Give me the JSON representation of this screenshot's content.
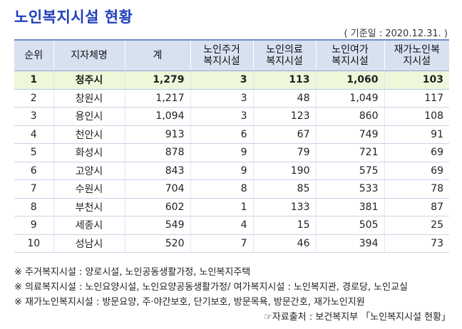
{
  "title": "노인복지시설 현황",
  "basis_date": "( 기준일 : 2020.12.31. )",
  "table": {
    "headers": [
      "순위",
      "지자체명",
      "계",
      "노인주거\n복지시설",
      "노인의료\n복지시설",
      "노인여가\n복지시설",
      "재가노인복\n지시설"
    ],
    "rows": [
      [
        "1",
        "청주시",
        "1,279",
        "3",
        "113",
        "1,060",
        "103"
      ],
      [
        "2",
        "창원시",
        "1,217",
        "3",
        "48",
        "1,049",
        "117"
      ],
      [
        "3",
        "용인시",
        "1,094",
        "3",
        "123",
        "860",
        "108"
      ],
      [
        "4",
        "천안시",
        "913",
        "6",
        "67",
        "749",
        "91"
      ],
      [
        "5",
        "화성시",
        "878",
        "9",
        "79",
        "721",
        "69"
      ],
      [
        "6",
        "고양시",
        "843",
        "9",
        "190",
        "575",
        "69"
      ],
      [
        "7",
        "수원시",
        "704",
        "8",
        "85",
        "533",
        "78"
      ],
      [
        "8",
        "부천시",
        "602",
        "1",
        "133",
        "381",
        "87"
      ],
      [
        "9",
        "세종시",
        "549",
        "4",
        "15",
        "505",
        "25"
      ],
      [
        "10",
        "성남시",
        "520",
        "7",
        "46",
        "394",
        "73"
      ]
    ]
  },
  "notes": [
    "※ 주거복지시설 : 양로시설, 노인공동생활가정, 노인복지주택",
    "※ 의료복지시설 : 노인요양시설, 노인요양공동생활가정/ 여가복지시설 : 노인복지관, 경로당, 노인교실",
    "※ 재가노인복지시설 : 방문요양, 주·야간보호, 단기보호, 방문목욕, 방문간호, 재가노인지원"
  ],
  "source": "☞자료출처 : 보건복지부 「노인복지시설 현황」",
  "colors": {
    "title": "#1f3fb8",
    "header_bg": "#d7e1f0",
    "highlight_bg": "#eef7d9"
  }
}
